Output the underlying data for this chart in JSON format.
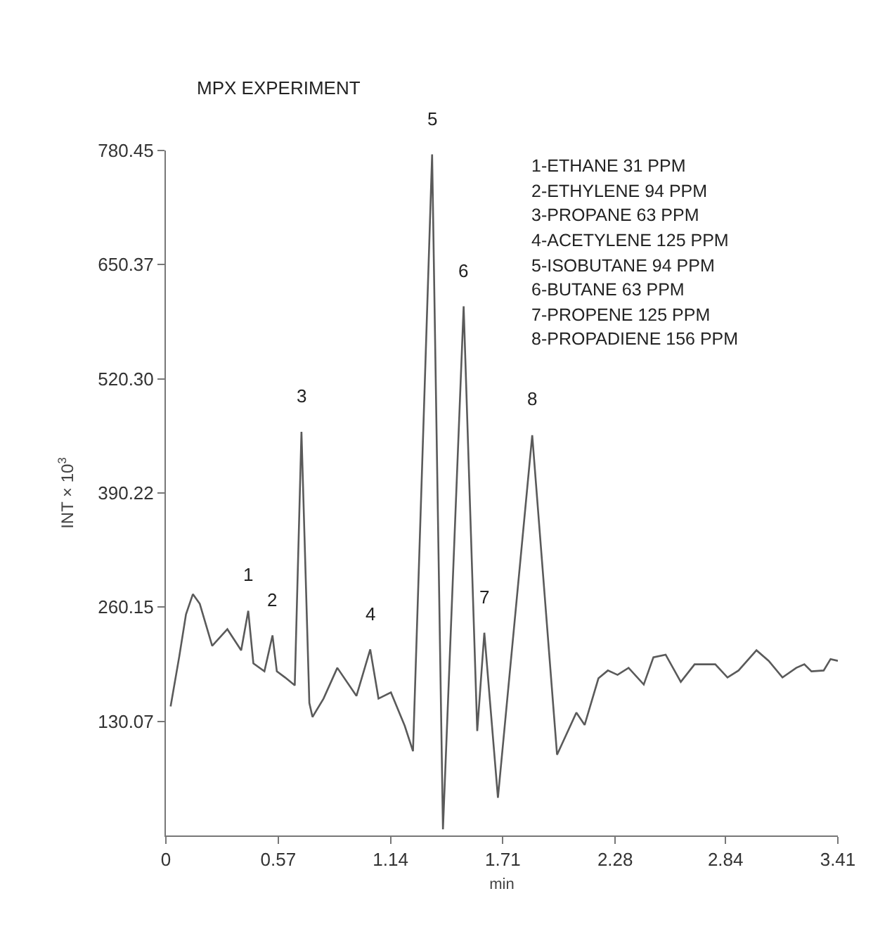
{
  "chart_data": {
    "type": "line",
    "title": "MPX EXPERIMENT",
    "xlabel": "min",
    "ylabel": "INT × 10$^{3}$",
    "xlim": [
      0,
      3.41
    ],
    "xticks": [
      0,
      0.57,
      1.14,
      1.71,
      2.28,
      2.84,
      3.41
    ],
    "ylim": [
      0,
      780.45
    ],
    "yticks": [
      130.07,
      260.15,
      390.22,
      {
        "value": 520.3,
        "label": "520.30"
      },
      650.37,
      780.45
    ],
    "marker": "none",
    "line_style": "solid",
    "series": [
      {
        "color": "#5a5a5a",
        "x": [
          0.024,
          0.068,
          0.102,
          0.137,
          0.172,
          0.235,
          0.312,
          0.382,
          0.418,
          0.444,
          0.5,
          0.541,
          0.563,
          0.605,
          0.654,
          0.688,
          0.728,
          0.744,
          0.8,
          0.87,
          0.967,
          1.037,
          1.079,
          1.142,
          1.212,
          1.254,
          1.351,
          1.406,
          1.511,
          1.58,
          1.616,
          1.685,
          1.859,
          1.985,
          2.083,
          2.125,
          2.195,
          2.243,
          2.292,
          2.348,
          2.425,
          2.474,
          2.536,
          2.613,
          2.683,
          2.788,
          2.85,
          2.906,
          2.997,
          3.059,
          3.129,
          3.199,
          3.24,
          3.276,
          3.338,
          3.373,
          3.41
        ],
        "values": [
          147,
          204,
          252,
          275,
          264,
          216,
          235,
          211,
          256,
          196,
          187,
          228,
          187,
          180,
          171,
          460,
          151,
          135,
          156,
          191,
          159,
          212,
          156,
          163,
          125,
          96,
          776,
          7,
          603,
          119,
          231,
          43,
          456,
          92,
          140,
          126,
          179,
          188,
          183,
          191,
          172,
          203,
          206,
          175,
          195,
          195,
          180,
          188,
          211,
          199,
          180,
          191,
          195,
          187,
          188,
          201,
          199
        ]
      }
    ],
    "annotations": [
      {
        "text": "1",
        "x": 0.418,
        "y": 256
      },
      {
        "text": "2",
        "x": 0.541,
        "y": 228
      },
      {
        "text": "3",
        "x": 0.688,
        "y": 460
      },
      {
        "text": "4",
        "x": 1.037,
        "y": 212
      },
      {
        "text": "5",
        "x": 1.351,
        "y": 776
      },
      {
        "text": "6",
        "x": 1.511,
        "y": 603
      },
      {
        "text": "7",
        "x": 1.616,
        "y": 231
      },
      {
        "text": "8",
        "x": 1.859,
        "y": 456
      },
      "1-ETHANE 31 PPM",
      "2-ETHYLENE 94 PPM",
      "3-PROPANE 63 PPM",
      "4-ACETYLENE 125 PPM",
      "5-ISOBUTANE 94 PPM",
      "6-BUTANE 63 PPM",
      "7-PROPENE 125 PPM",
      "8-PROPADIENE 156 PPM"
    ]
  }
}
